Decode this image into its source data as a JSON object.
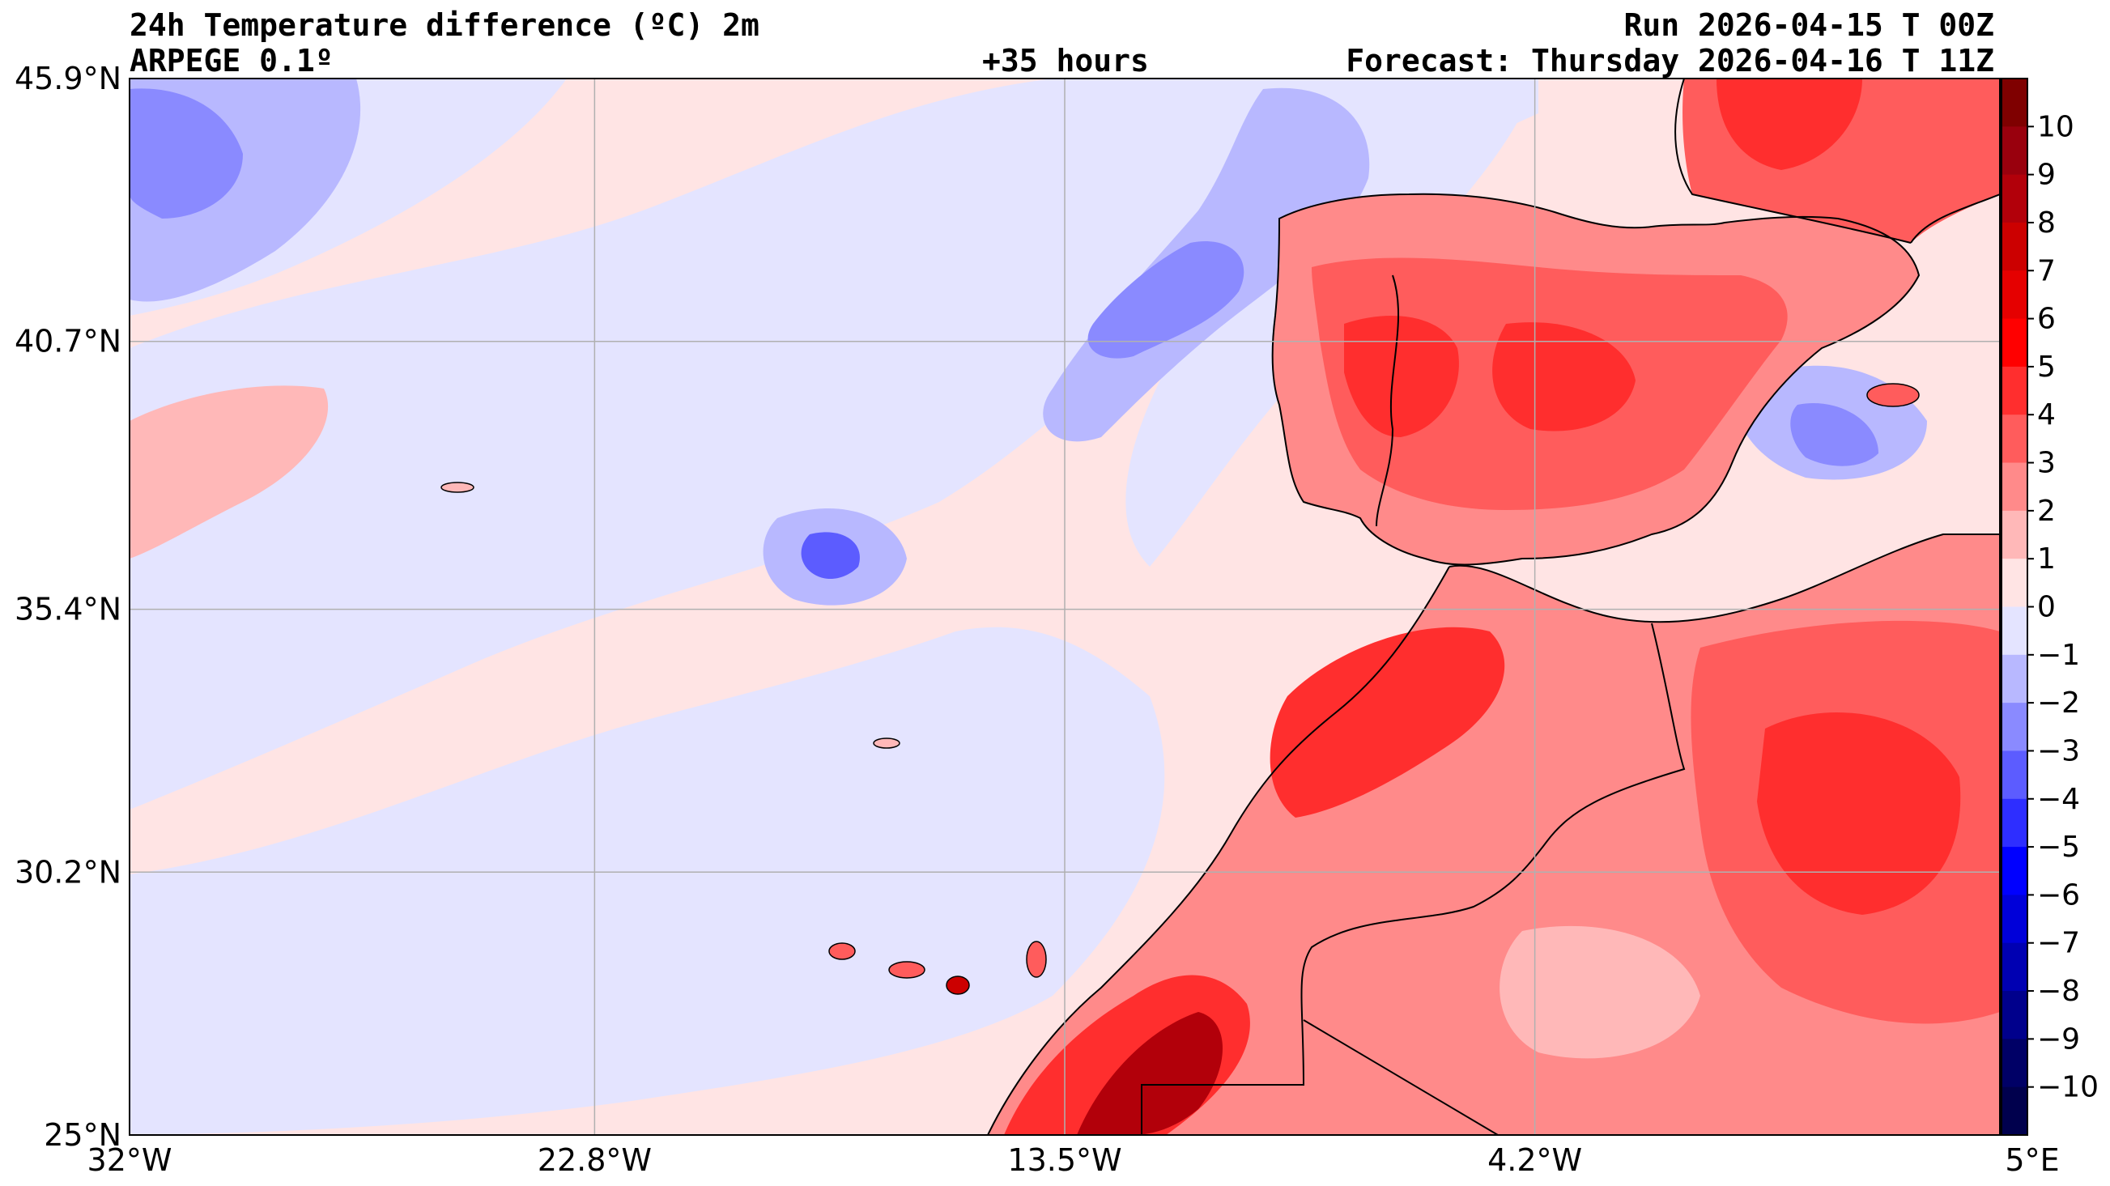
{
  "header": {
    "title": "24h Temperature difference (ºC) 2m",
    "model": "ARPEGE 0.1º",
    "lead_time": "+35 hours",
    "run": "Run 2026-04-15 T 00Z",
    "forecast": "Forecast: Thursday 2026-04-16 T 11Z"
  },
  "axes": {
    "lat_ticks": [
      "45.9°N",
      "40.7°N",
      "35.4°N",
      "30.2°N",
      "25°N"
    ],
    "lon_ticks": [
      "32°W",
      "22.8°W",
      "13.5°W",
      "4.2°W",
      "5°E"
    ],
    "lat_values": [
      45.9,
      40.7,
      35.4,
      30.2,
      25.0
    ],
    "lon_values": [
      -32.0,
      -22.8,
      -13.5,
      -4.2,
      5.0
    ],
    "lat_range": [
      25.0,
      45.9
    ],
    "lon_range": [
      -32.0,
      5.0
    ],
    "grid": true
  },
  "colorbar": {
    "levels": [
      10,
      9,
      8,
      7,
      6,
      5,
      4,
      3,
      2,
      1,
      0,
      -1,
      -2,
      -3,
      -4,
      -5,
      -6,
      -7,
      -8,
      -9,
      -10
    ],
    "labels": [
      "10",
      "9",
      "8",
      "7",
      "6",
      "5",
      "4",
      "3",
      "2",
      "1",
      "0",
      "−1",
      "−2",
      "−3",
      "−4",
      "−5",
      "−6",
      "−7",
      "−8",
      "−9",
      "−10"
    ],
    "colors": [
      "#7f0000",
      "#99000d",
      "#b2000a",
      "#cc0000",
      "#e50000",
      "#ff0000",
      "#ff2e2e",
      "#ff5c5c",
      "#ff8a8a",
      "#ffb8b8",
      "#ffe4e4",
      "#e4e4ff",
      "#b8b8ff",
      "#8a8aff",
      "#5c5cff",
      "#2e2eff",
      "#0000ff",
      "#0000d9",
      "#0000b2",
      "#00008c",
      "#000066",
      "#00004d"
    ]
  }
}
